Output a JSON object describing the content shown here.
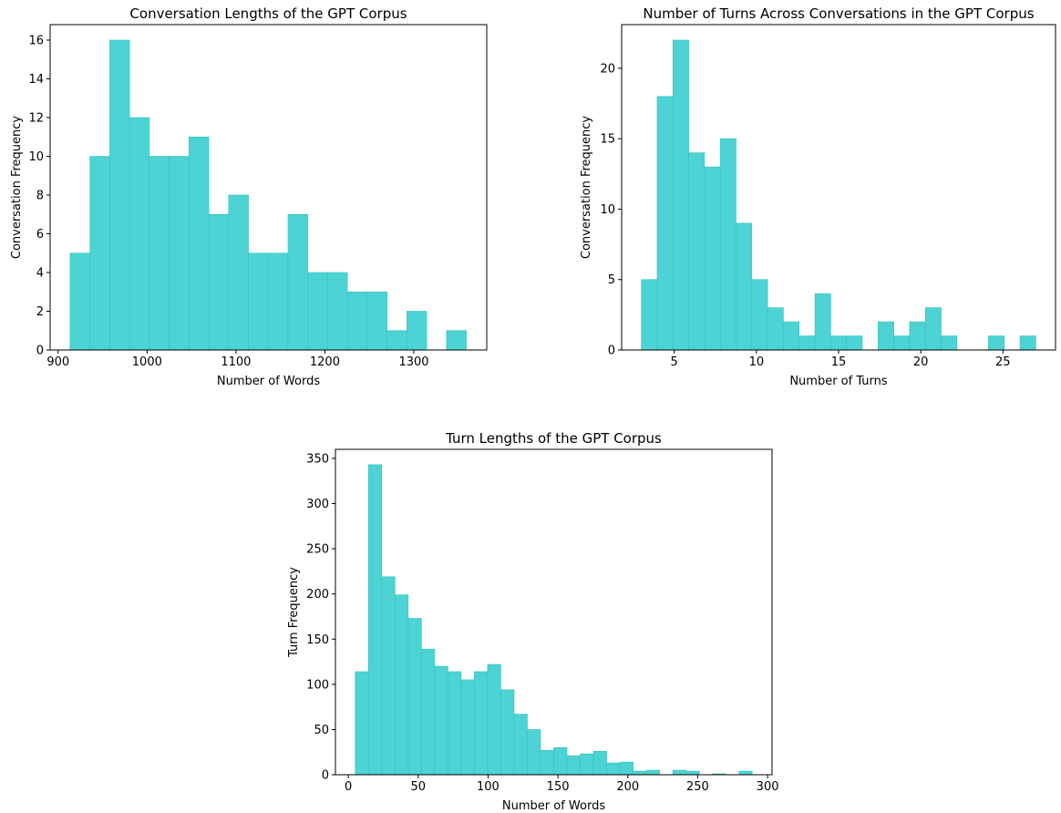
{
  "colors": {
    "bar_fill": "#4dd3d3",
    "bar_edge": "#33c0c0",
    "axis": "#000000"
  },
  "chart_data": [
    {
      "type": "bar",
      "title": "Conversation Lengths of the GPT Corpus",
      "xlabel": "Number of Words",
      "ylabel": "Conversation Frequency",
      "bin_range": [
        913.5,
        1359
      ],
      "values": [
        5,
        10,
        16,
        12,
        10,
        10,
        11,
        7,
        8,
        5,
        5,
        7,
        4,
        4,
        3,
        3,
        1,
        2,
        0,
        1
      ],
      "xlim": [
        891,
        1382
      ],
      "ylim": [
        0,
        16.8
      ],
      "xticks": [
        "900",
        "1000",
        "1100",
        "1200",
        "1300"
      ],
      "yticks": [
        "0",
        "2",
        "4",
        "6",
        "8",
        "10",
        "12",
        "14",
        "16"
      ],
      "grid": false
    },
    {
      "type": "bar",
      "title": "Number of Turns Across Conversations in the GPT Corpus",
      "xlabel": "Number of Turns",
      "ylabel": "Conversation Frequency",
      "bin_range": [
        3,
        27
      ],
      "values": [
        5,
        18,
        22,
        14,
        13,
        15,
        9,
        5,
        3,
        2,
        1,
        4,
        1,
        1,
        0,
        2,
        1,
        2,
        3,
        1,
        0,
        0,
        1,
        0,
        1
      ],
      "xlim": [
        1.8,
        28.2
      ],
      "ylim": [
        0,
        23.1
      ],
      "xticks": [
        "5",
        "10",
        "15",
        "20",
        "25"
      ],
      "yticks": [
        "0",
        "5",
        "10",
        "15",
        "20"
      ],
      "grid": false
    },
    {
      "type": "bar",
      "title": "Turn Lengths of the GPT Corpus",
      "xlabel": "Number of Words",
      "ylabel": "Turn Frequency",
      "bin_range": [
        5,
        289
      ],
      "values": [
        114,
        343,
        219,
        199,
        173,
        139,
        120,
        114,
        105,
        114,
        122,
        94,
        67,
        50,
        27,
        30,
        21,
        23,
        26,
        13,
        14,
        4,
        5,
        0,
        5,
        4,
        0,
        1,
        0,
        4
      ],
      "xlim": [
        -9.2,
        303.2
      ],
      "ylim": [
        0,
        360
      ],
      "xticks": [
        "0",
        "50",
        "100",
        "150",
        "200",
        "250",
        "300"
      ],
      "yticks": [
        "0",
        "50",
        "100",
        "150",
        "200",
        "250",
        "300",
        "350"
      ],
      "grid": false
    }
  ]
}
